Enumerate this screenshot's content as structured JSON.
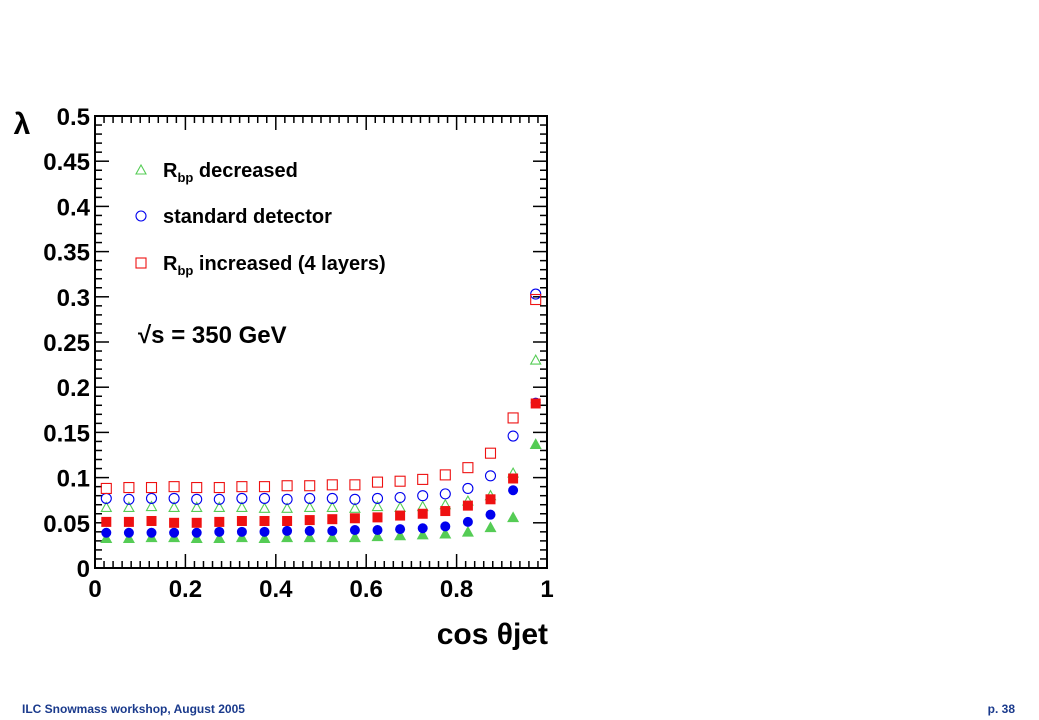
{
  "footer": {
    "left": "ILC Snowmass workshop, August 2005",
    "right": "p. 38"
  },
  "chart_data": {
    "type": "scatter",
    "title": "",
    "xlabel": "cos θjet",
    "ylabel": "λ",
    "xlim": [
      0,
      1
    ],
    "ylim": [
      0,
      0.5
    ],
    "x_ticks": [
      "0",
      "0.2",
      "0.4",
      "0.6",
      "0.8",
      "1"
    ],
    "y_ticks": [
      "0",
      "0.05",
      "0.1",
      "0.15",
      "0.2",
      "0.25",
      "0.3",
      "0.35",
      "0.4",
      "0.45",
      "0.5"
    ],
    "grid": false,
    "legend_position": "top-left",
    "annotation": "√s = 350 GeV",
    "x": [
      0.025,
      0.075,
      0.125,
      0.175,
      0.225,
      0.275,
      0.325,
      0.375,
      0.425,
      0.475,
      0.525,
      0.575,
      0.625,
      0.675,
      0.725,
      0.775,
      0.825,
      0.875,
      0.925,
      0.975
    ],
    "series": [
      {
        "name": "Rbp decreased",
        "legend_main": "R",
        "legend_sub": "bp",
        "legend_rest": " decreased",
        "color": "#55cc55",
        "marker": "triangle",
        "open_values": [
          0.067,
          0.067,
          0.068,
          0.067,
          0.067,
          0.067,
          0.067,
          0.066,
          0.066,
          0.067,
          0.067,
          0.066,
          0.068,
          0.067,
          0.068,
          0.07,
          0.074,
          0.08,
          0.105,
          0.23
        ],
        "filled_values": [
          0.033,
          0.033,
          0.034,
          0.034,
          0.033,
          0.033,
          0.034,
          0.033,
          0.034,
          0.034,
          0.034,
          0.034,
          0.035,
          0.036,
          0.037,
          0.038,
          0.04,
          0.045,
          0.056,
          0.137
        ]
      },
      {
        "name": "standard detector",
        "legend_main": "standard detector",
        "legend_sub": "",
        "legend_rest": "",
        "color": "#0000ee",
        "marker": "circle",
        "open_values": [
          0.077,
          0.076,
          0.077,
          0.077,
          0.076,
          0.076,
          0.077,
          0.077,
          0.076,
          0.077,
          0.077,
          0.076,
          0.077,
          0.078,
          0.08,
          0.082,
          0.088,
          0.102,
          0.146,
          0.303
        ],
        "filled_values": [
          0.039,
          0.039,
          0.039,
          0.039,
          0.039,
          0.04,
          0.04,
          0.04,
          0.041,
          0.041,
          0.041,
          0.042,
          0.042,
          0.043,
          0.044,
          0.046,
          0.051,
          0.059,
          0.086,
          0.183
        ]
      },
      {
        "name": "Rbp increased (4 layers)",
        "legend_main": "R",
        "legend_sub": "bp",
        "legend_rest": " increased (4 layers)",
        "color": "#ee1111",
        "marker": "square",
        "open_values": [
          0.088,
          0.089,
          0.089,
          0.09,
          0.089,
          0.089,
          0.09,
          0.09,
          0.091,
          0.091,
          0.092,
          0.092,
          0.095,
          0.096,
          0.098,
          0.103,
          0.111,
          0.127,
          0.166,
          0.297
        ],
        "filled_values": [
          0.051,
          0.051,
          0.052,
          0.05,
          0.05,
          0.051,
          0.052,
          0.052,
          0.052,
          0.053,
          0.054,
          0.055,
          0.056,
          0.058,
          0.06,
          0.063,
          0.069,
          0.076,
          0.099,
          0.182
        ]
      }
    ]
  }
}
